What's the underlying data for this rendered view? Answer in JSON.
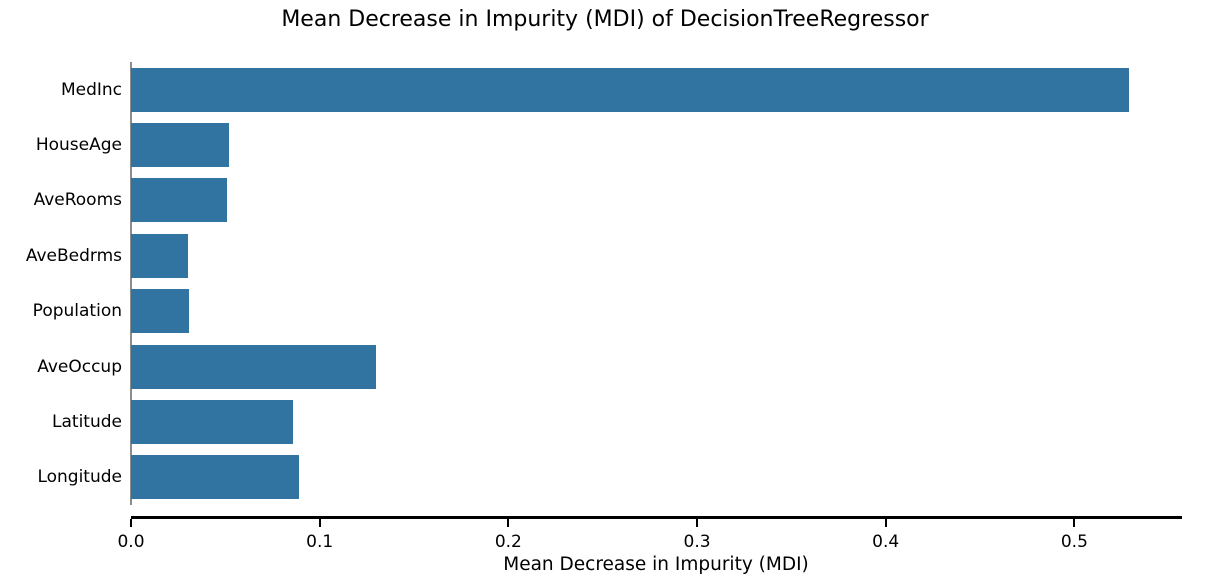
{
  "chart_data": {
    "type": "bar",
    "orientation": "horizontal",
    "title": "Mean Decrease in Impurity (MDI) of DecisionTreeRegressor",
    "xlabel": "Mean Decrease in Impurity (MDI)",
    "ylabel": "",
    "categories": [
      "MedInc",
      "HouseAge",
      "AveRooms",
      "AveBedrms",
      "Population",
      "AveOccup",
      "Latitude",
      "Longitude"
    ],
    "values": [
      0.529,
      0.052,
      0.051,
      0.03,
      0.031,
      0.13,
      0.086,
      0.089
    ],
    "x_ticks": [
      0.0,
      0.1,
      0.2,
      0.3,
      0.4,
      0.5
    ],
    "x_tick_labels": [
      "0.0",
      "0.1",
      "0.2",
      "0.3",
      "0.4",
      "0.5"
    ],
    "xlim": [
      0,
      0.5565
    ],
    "grid": false,
    "legend": null,
    "colors": {
      "bar": "#3274a1",
      "background": "#ffffff",
      "bottom_spine": "#000000",
      "left_spine": "#8c8c8c",
      "text": "#000000"
    }
  }
}
